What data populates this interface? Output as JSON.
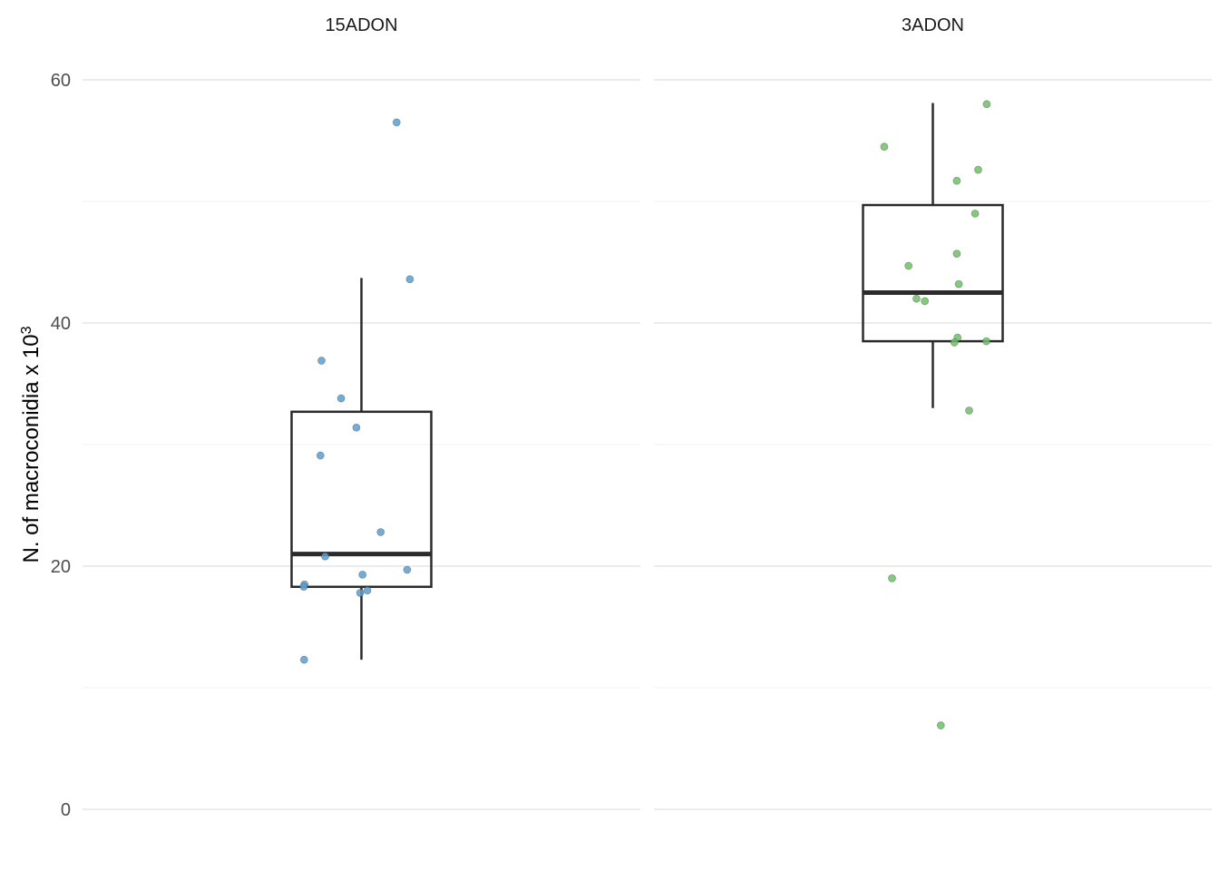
{
  "chart_data": {
    "type": "boxplot-with-jitter",
    "ylabel_base": "N. of macroconidia x 10",
    "ylabel_superscript": "3",
    "xlabel": "",
    "ylim": [
      0,
      60
    ],
    "y_ticks": [
      0,
      20,
      40,
      60
    ],
    "grid": true,
    "panels": [
      {
        "title": "15ADON",
        "color": "#5b9fd0",
        "box": {
          "lower_whisker": 12.3,
          "q1": 18.3,
          "median": 21.0,
          "q3": 32.7,
          "upper_whisker": 43.7
        },
        "points": [
          {
            "x": 0.194,
            "y": 56.5
          },
          {
            "x": 0.267,
            "y": 43.6
          },
          {
            "x": -0.22,
            "y": 36.9
          },
          {
            "x": -0.112,
            "y": 33.8
          },
          {
            "x": -0.028,
            "y": 31.4
          },
          {
            "x": -0.226,
            "y": 29.1
          },
          {
            "x": 0.106,
            "y": 22.8
          },
          {
            "x": -0.2,
            "y": 20.8
          },
          {
            "x": 0.252,
            "y": 19.7
          },
          {
            "x": 0.006,
            "y": 19.3
          },
          {
            "x": -0.314,
            "y": 18.5
          },
          {
            "x": -0.318,
            "y": 18.3
          },
          {
            "x": 0.033,
            "y": 18.0
          },
          {
            "x": -0.007,
            "y": 17.8
          },
          {
            "x": -0.316,
            "y": 12.3
          }
        ]
      },
      {
        "title": "3ADON",
        "color": "#6dbf67",
        "box": {
          "lower_whisker": 33.0,
          "q1": 38.5,
          "median": 42.5,
          "q3": 49.7,
          "upper_whisker": 58.1
        },
        "points": [
          {
            "x": 0.297,
            "y": 58.0
          },
          {
            "x": -0.268,
            "y": 54.5
          },
          {
            "x": 0.25,
            "y": 52.6
          },
          {
            "x": 0.132,
            "y": 51.7
          },
          {
            "x": 0.233,
            "y": 49.0
          },
          {
            "x": 0.132,
            "y": 45.7
          },
          {
            "x": -0.134,
            "y": 44.7
          },
          {
            "x": 0.143,
            "y": 43.2
          },
          {
            "x": -0.09,
            "y": 42.0
          },
          {
            "x": -0.044,
            "y": 41.8
          },
          {
            "x": 0.136,
            "y": 38.8
          },
          {
            "x": 0.119,
            "y": 38.4
          },
          {
            "x": 0.295,
            "y": 38.5
          },
          {
            "x": 0.2,
            "y": 32.8
          },
          {
            "x": -0.225,
            "y": 19.0
          },
          {
            "x": 0.044,
            "y": 6.9
          }
        ]
      }
    ]
  }
}
